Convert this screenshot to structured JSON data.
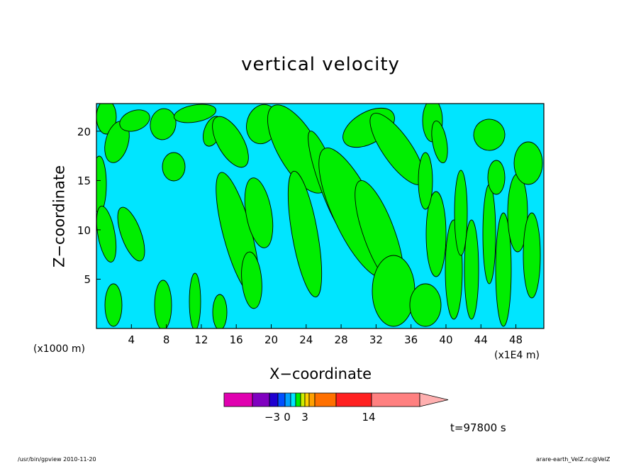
{
  "chart_data": {
    "type": "heatmap",
    "title": "vertical velocity",
    "xlabel": "X−coordinate",
    "ylabel": "Z−coordinate",
    "x_unit_left": "(x1000 m)",
    "x_unit_right": "(x1E4 m)",
    "x_ticks": [
      "4",
      "8",
      "12",
      "16",
      "20",
      "24",
      "28",
      "32",
      "36",
      "40",
      "44",
      "48"
    ],
    "y_ticks": [
      "5",
      "10",
      "15",
      "20"
    ],
    "xlim": [
      0,
      51.2
    ],
    "ylim": [
      0,
      22.8
    ],
    "colors": {
      "positive": "#00ee00",
      "negative": "#00e5ff",
      "contour": "#000000"
    },
    "colorbar": {
      "colors": [
        "#e000b0",
        "#8000c0",
        "#2000d0",
        "#0050ff",
        "#00a0ff",
        "#00e5ff",
        "#00ee00",
        "#ccee00",
        "#ffd000",
        "#ffa000",
        "#ff7000",
        "#ff2020",
        "#ff8080"
      ],
      "tick_labels": [
        "−3",
        "0",
        "3",
        "14"
      ],
      "extend": "max"
    },
    "time_label": "t=97800 s"
  },
  "footer": {
    "left": "/usr/bin/gpview  2010-11-20",
    "right": "arare-earth_VelZ.nc@VelZ"
  }
}
